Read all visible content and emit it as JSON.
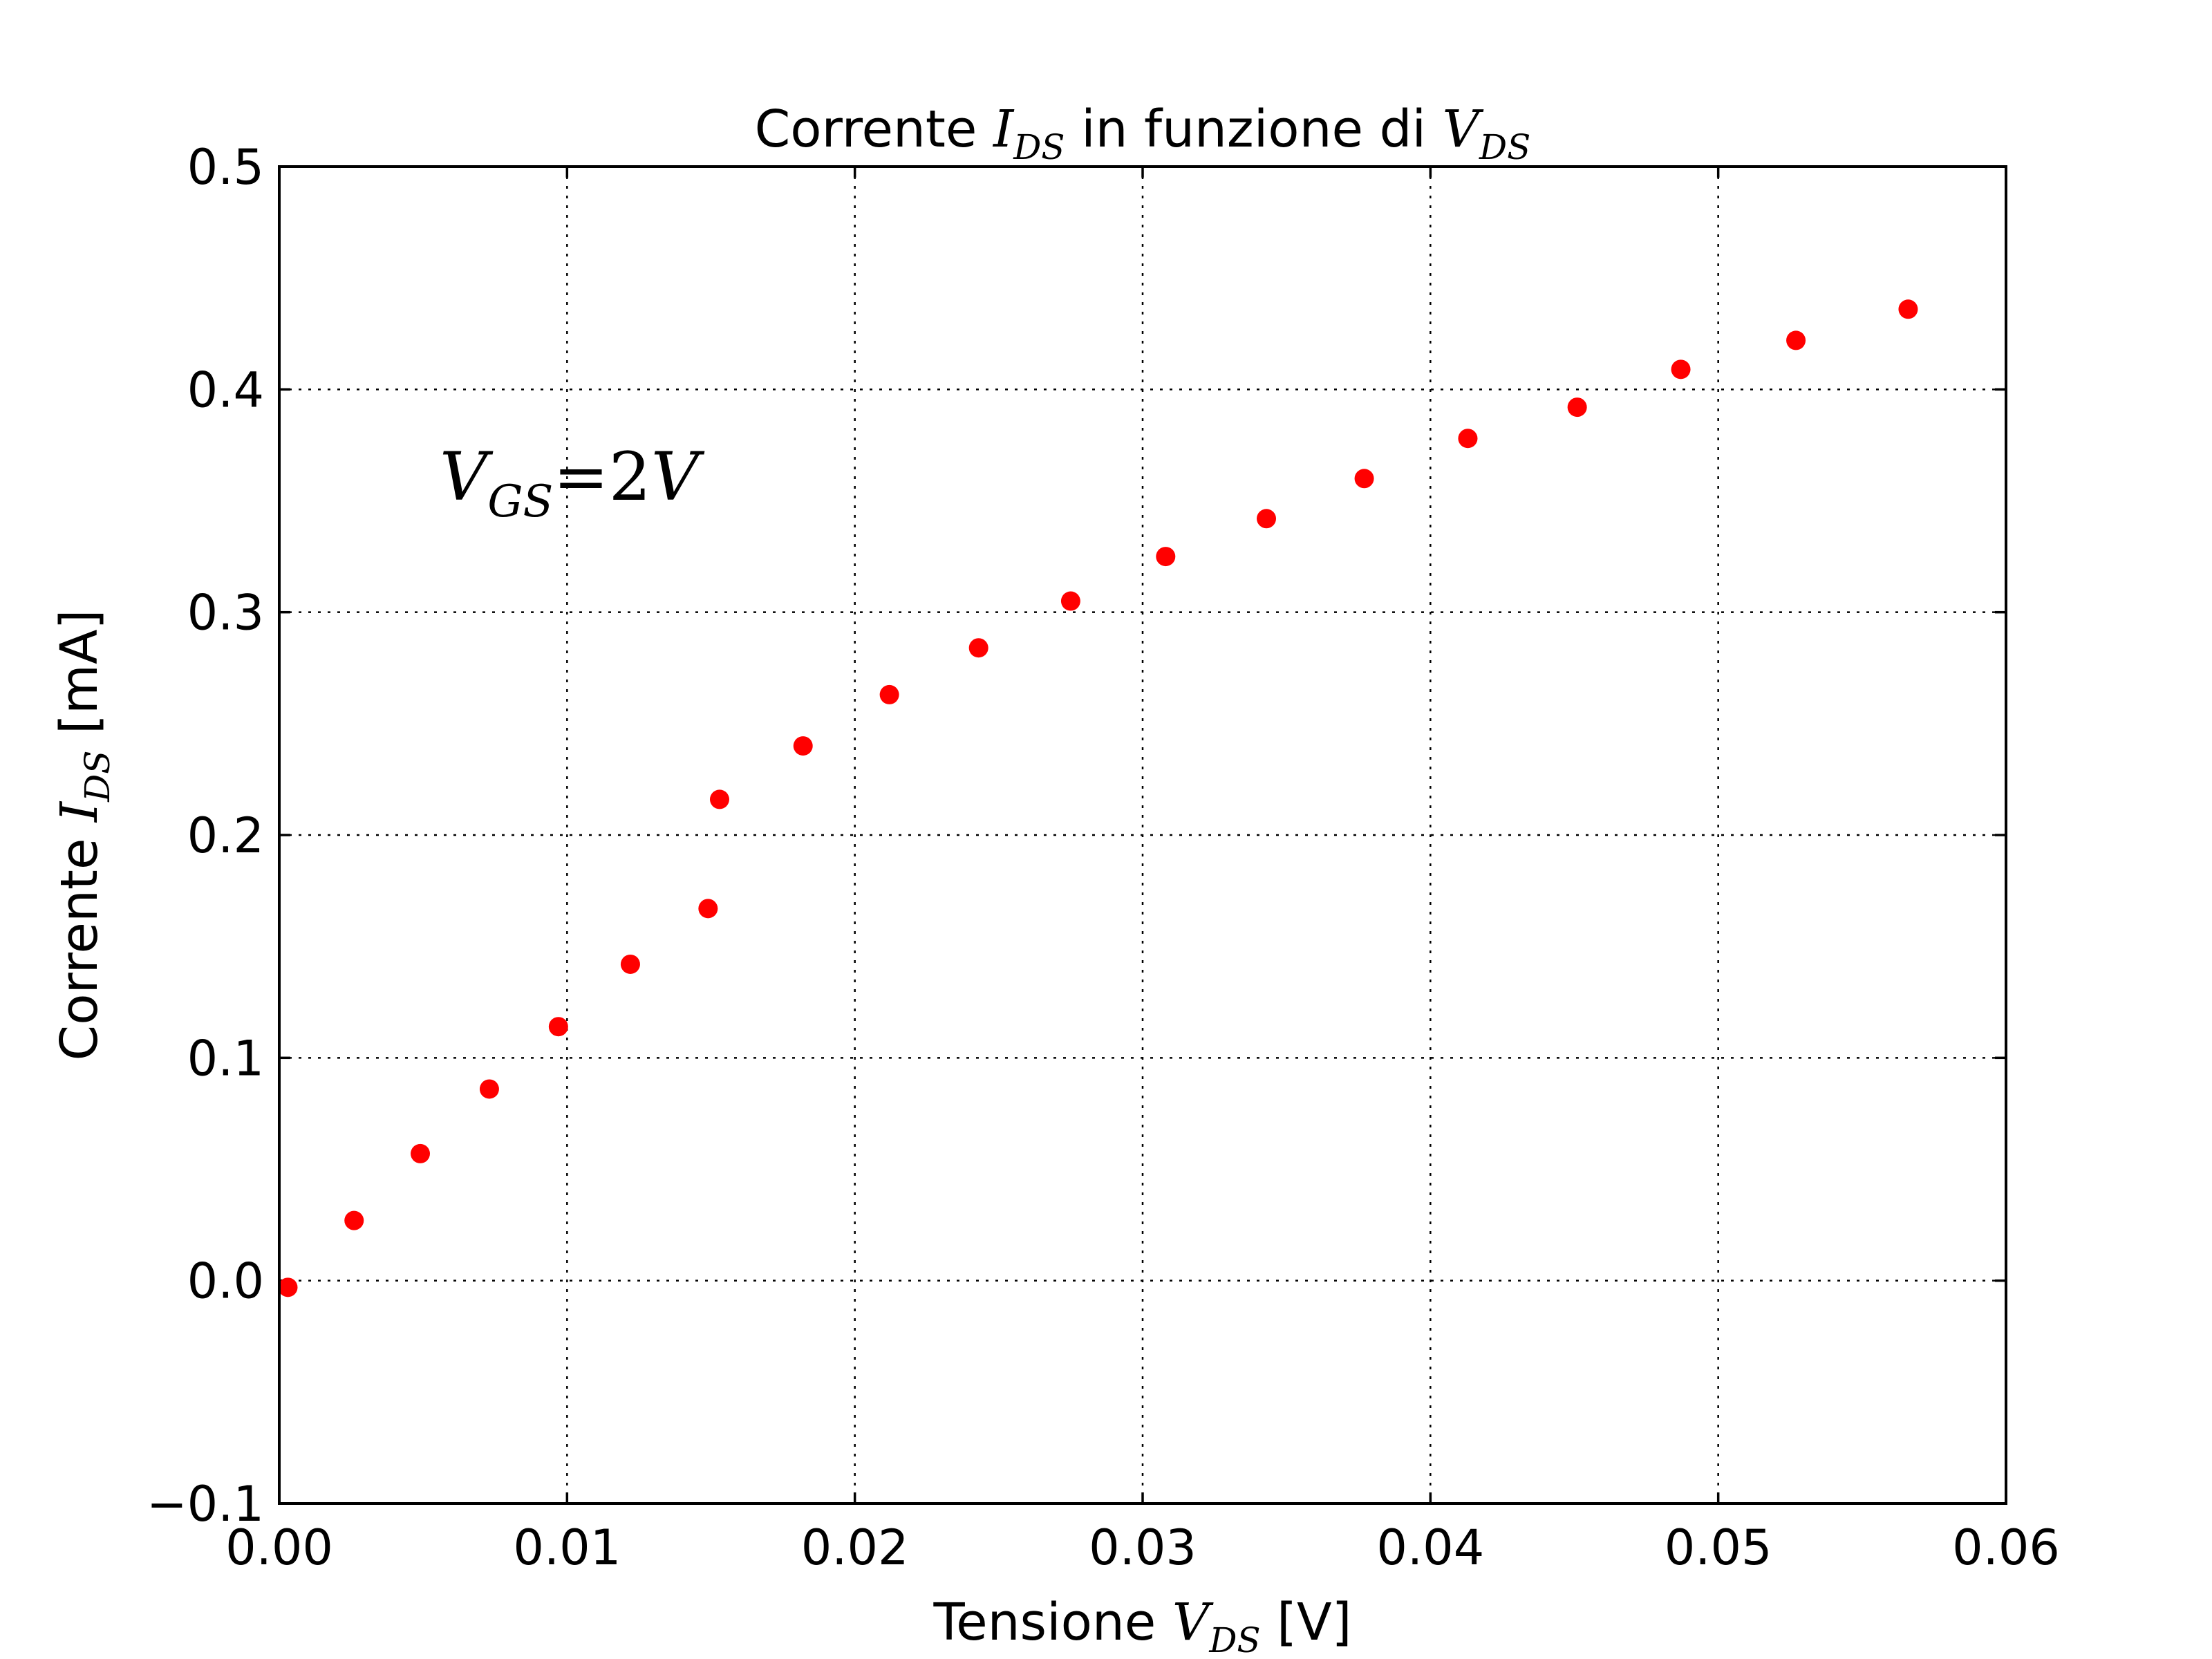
{
  "chart_data": {
    "type": "scatter",
    "title": {
      "prefix": "Corrente ",
      "sym1": "I",
      "sub1": "DS",
      "middle": " in funzione di ",
      "sym2": "V",
      "sub2": "DS"
    },
    "xlabel": {
      "prefix": "Tensione ",
      "sym": "V",
      "sub": "DS",
      "suffix": " [V]"
    },
    "ylabel": {
      "prefix": "Corrente ",
      "sym": "I",
      "sub": "DS",
      "suffix": " [mA]"
    },
    "annotation": {
      "sym": "V",
      "sub": "GS",
      "eq": "=2",
      "unit": "V"
    },
    "xlim": [
      0.0,
      0.06
    ],
    "ylim": [
      -0.1,
      0.5
    ],
    "xticks": [
      0.0,
      0.01,
      0.02,
      0.03,
      0.04,
      0.05,
      0.06
    ],
    "xtick_labels": [
      "0.00",
      "0.01",
      "0.02",
      "0.03",
      "0.04",
      "0.05",
      "0.06"
    ],
    "yticks": [
      -0.1,
      0.0,
      0.1,
      0.2,
      0.3,
      0.4,
      0.5
    ],
    "ytick_labels": [
      "−0.1",
      "0.0",
      "0.1",
      "0.2",
      "0.3",
      "0.4",
      "0.5"
    ],
    "grid": true,
    "marker_color": "#ff0000",
    "points": [
      {
        "x": 0.0003,
        "y": -0.003
      },
      {
        "x": 0.0026,
        "y": 0.027
      },
      {
        "x": 0.0049,
        "y": 0.057
      },
      {
        "x": 0.0073,
        "y": 0.086
      },
      {
        "x": 0.0097,
        "y": 0.114
      },
      {
        "x": 0.0122,
        "y": 0.142
      },
      {
        "x": 0.0149,
        "y": 0.167
      },
      {
        "x": 0.0153,
        "y": 0.216
      },
      {
        "x": 0.0182,
        "y": 0.24
      },
      {
        "x": 0.0212,
        "y": 0.263
      },
      {
        "x": 0.0243,
        "y": 0.284
      },
      {
        "x": 0.0275,
        "y": 0.305
      },
      {
        "x": 0.0308,
        "y": 0.325
      },
      {
        "x": 0.0343,
        "y": 0.342
      },
      {
        "x": 0.0377,
        "y": 0.36
      },
      {
        "x": 0.0413,
        "y": 0.378
      },
      {
        "x": 0.0451,
        "y": 0.392
      },
      {
        "x": 0.0487,
        "y": 0.409
      },
      {
        "x": 0.0527,
        "y": 0.422
      },
      {
        "x": 0.0566,
        "y": 0.436
      }
    ]
  }
}
